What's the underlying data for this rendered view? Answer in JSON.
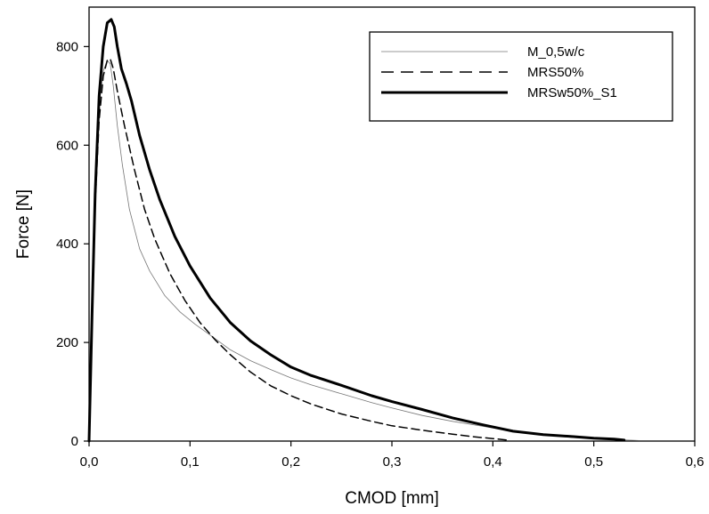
{
  "chart_data": {
    "type": "line",
    "title": "",
    "xlabel": "CMOD [mm]",
    "ylabel": "Force [N]",
    "xlim": [
      0,
      0.6
    ],
    "ylim": [
      0,
      880
    ],
    "x_ticks": [
      0,
      0.1,
      0.2,
      0.3,
      0.4,
      0.5,
      0.6
    ],
    "x_tick_labels": [
      "0,0",
      "0,1",
      "0,2",
      "0,3",
      "0,4",
      "0,5",
      "0,6"
    ],
    "y_ticks": [
      0,
      200,
      400,
      600,
      800
    ],
    "y_tick_labels": [
      "0",
      "200",
      "400",
      "600",
      "800"
    ],
    "grid": false,
    "legend_position": "top-right",
    "series": [
      {
        "name": "M_0,5w/c",
        "color": "#777777",
        "style": "thin",
        "x": [
          0,
          0.003,
          0.006,
          0.01,
          0.014,
          0.018,
          0.021,
          0.024,
          0.028,
          0.033,
          0.04,
          0.05,
          0.06,
          0.075,
          0.09,
          0.105,
          0.12,
          0.14,
          0.16,
          0.18,
          0.2,
          0.22,
          0.25,
          0.28,
          0.3,
          0.33,
          0.36,
          0.39,
          0.42,
          0.45,
          0.48,
          0.5,
          0.52,
          0.545
        ],
        "y": [
          0,
          280,
          520,
          680,
          750,
          772,
          765,
          720,
          640,
          560,
          470,
          390,
          345,
          295,
          262,
          237,
          215,
          185,
          163,
          145,
          128,
          114,
          96,
          78,
          67,
          52,
          40,
          30,
          20,
          13,
          7,
          5,
          3,
          1
        ]
      },
      {
        "name": "MRS50%",
        "color": "#000000",
        "style": "dashed",
        "x": [
          0,
          0.003,
          0.006,
          0.01,
          0.014,
          0.018,
          0.021,
          0.024,
          0.028,
          0.035,
          0.045,
          0.055,
          0.065,
          0.08,
          0.095,
          0.11,
          0.125,
          0.14,
          0.16,
          0.18,
          0.2,
          0.22,
          0.25,
          0.28,
          0.3,
          0.33,
          0.36,
          0.38,
          0.4,
          0.415
        ],
        "y": [
          0,
          250,
          480,
          650,
          740,
          772,
          775,
          755,
          710,
          640,
          550,
          470,
          410,
          340,
          285,
          240,
          205,
          175,
          140,
          112,
          92,
          75,
          55,
          40,
          31,
          22,
          14,
          9,
          5,
          2
        ]
      },
      {
        "name": "MRSw50%_S1",
        "color": "#000000",
        "style": "thick",
        "x": [
          0,
          0.003,
          0.006,
          0.01,
          0.014,
          0.018,
          0.022,
          0.025,
          0.028,
          0.032,
          0.037,
          0.042,
          0.05,
          0.06,
          0.07,
          0.085,
          0.1,
          0.12,
          0.14,
          0.16,
          0.18,
          0.2,
          0.22,
          0.25,
          0.28,
          0.3,
          0.33,
          0.36,
          0.39,
          0.42,
          0.45,
          0.48,
          0.5,
          0.52,
          0.53
        ],
        "y": [
          0,
          260,
          500,
          700,
          800,
          848,
          855,
          840,
          800,
          755,
          725,
          690,
          620,
          550,
          490,
          415,
          355,
          290,
          240,
          203,
          175,
          150,
          133,
          113,
          92,
          80,
          64,
          47,
          33,
          20,
          13,
          9,
          6,
          4,
          2
        ]
      }
    ]
  }
}
